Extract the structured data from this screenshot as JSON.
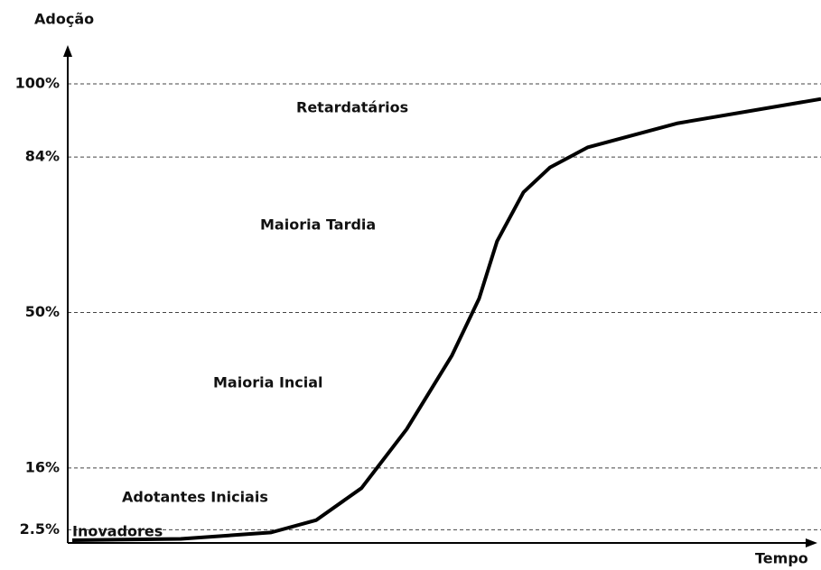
{
  "chart_data": {
    "type": "line",
    "y_label": "Adoção",
    "x_label": "Tempo",
    "x": [
      0.6,
      15,
      27,
      33,
      39,
      45,
      51,
      54.6,
      57,
      60.5,
      64,
      69,
      81,
      100
    ],
    "values": [
      0.2,
      0.5,
      1.9,
      4.6,
      11.6,
      24.5,
      40.6,
      53,
      65.6,
      76.3,
      81.7,
      86.1,
      91.4,
      96.7
    ],
    "color": "#000000",
    "xlim": [
      0,
      100
    ],
    "ylim": [
      0,
      100
    ],
    "yticks": [
      {
        "value": 2.5,
        "label": "2.5%"
      },
      {
        "value": 16,
        "label": "16%"
      },
      {
        "value": 50,
        "label": "50%"
      },
      {
        "value": 84,
        "label": "84%"
      },
      {
        "value": 100,
        "label": "100%"
      }
    ],
    "grid": true,
    "annotations": [
      "Retardatários",
      "Maioria Tardia",
      "Maioria Incial",
      "Adotantes Iniciais",
      "Inovadores"
    ]
  }
}
